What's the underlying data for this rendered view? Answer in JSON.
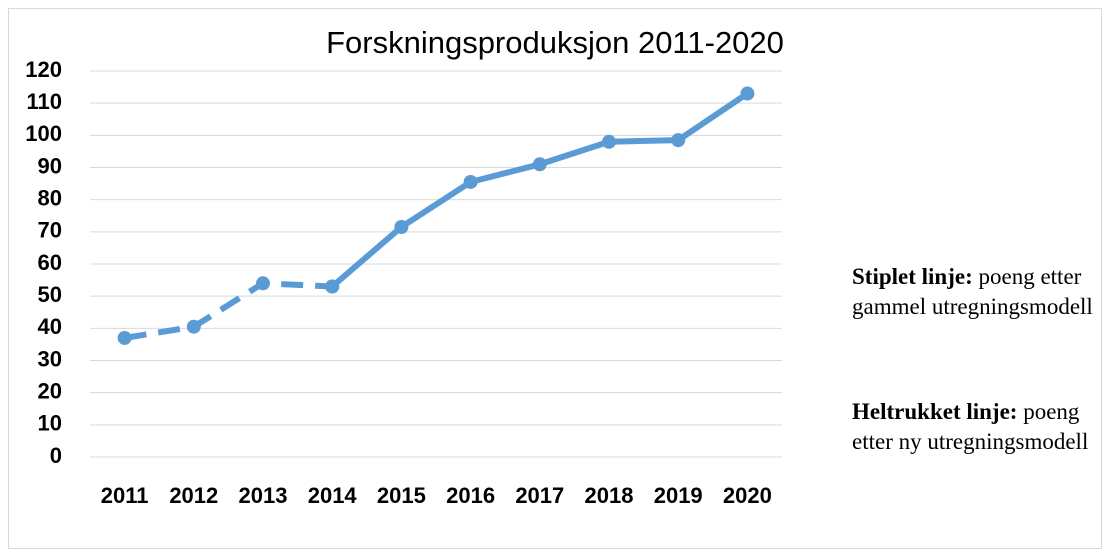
{
  "chart_data": {
    "type": "line",
    "title": "Forskningsproduksjon 2011-2020",
    "categories": [
      "2011",
      "2012",
      "2013",
      "2014",
      "2015",
      "2016",
      "2017",
      "2018",
      "2019",
      "2020"
    ],
    "series": [
      {
        "color": "#5b9bd5",
        "dashed": true,
        "values": [
          37,
          40.5,
          54,
          53,
          null,
          null,
          null,
          null,
          null,
          null
        ]
      },
      {
        "color": "#5b9bd5",
        "dashed": false,
        "values": [
          null,
          null,
          null,
          53,
          71.5,
          85.5,
          91,
          98,
          98.5,
          113
        ]
      }
    ],
    "ylim": [
      0,
      120
    ],
    "yticks": [
      0,
      10,
      20,
      30,
      40,
      50,
      60,
      70,
      80,
      90,
      100,
      110,
      120
    ],
    "grid": true,
    "annotations": [
      {
        "bold": "Stiplet linje:",
        "text": " poeng etter gammel utregningsmodell"
      },
      {
        "bold": "Heltrukket linje:",
        "text": " poeng etter ny utregningsmodell"
      }
    ]
  }
}
